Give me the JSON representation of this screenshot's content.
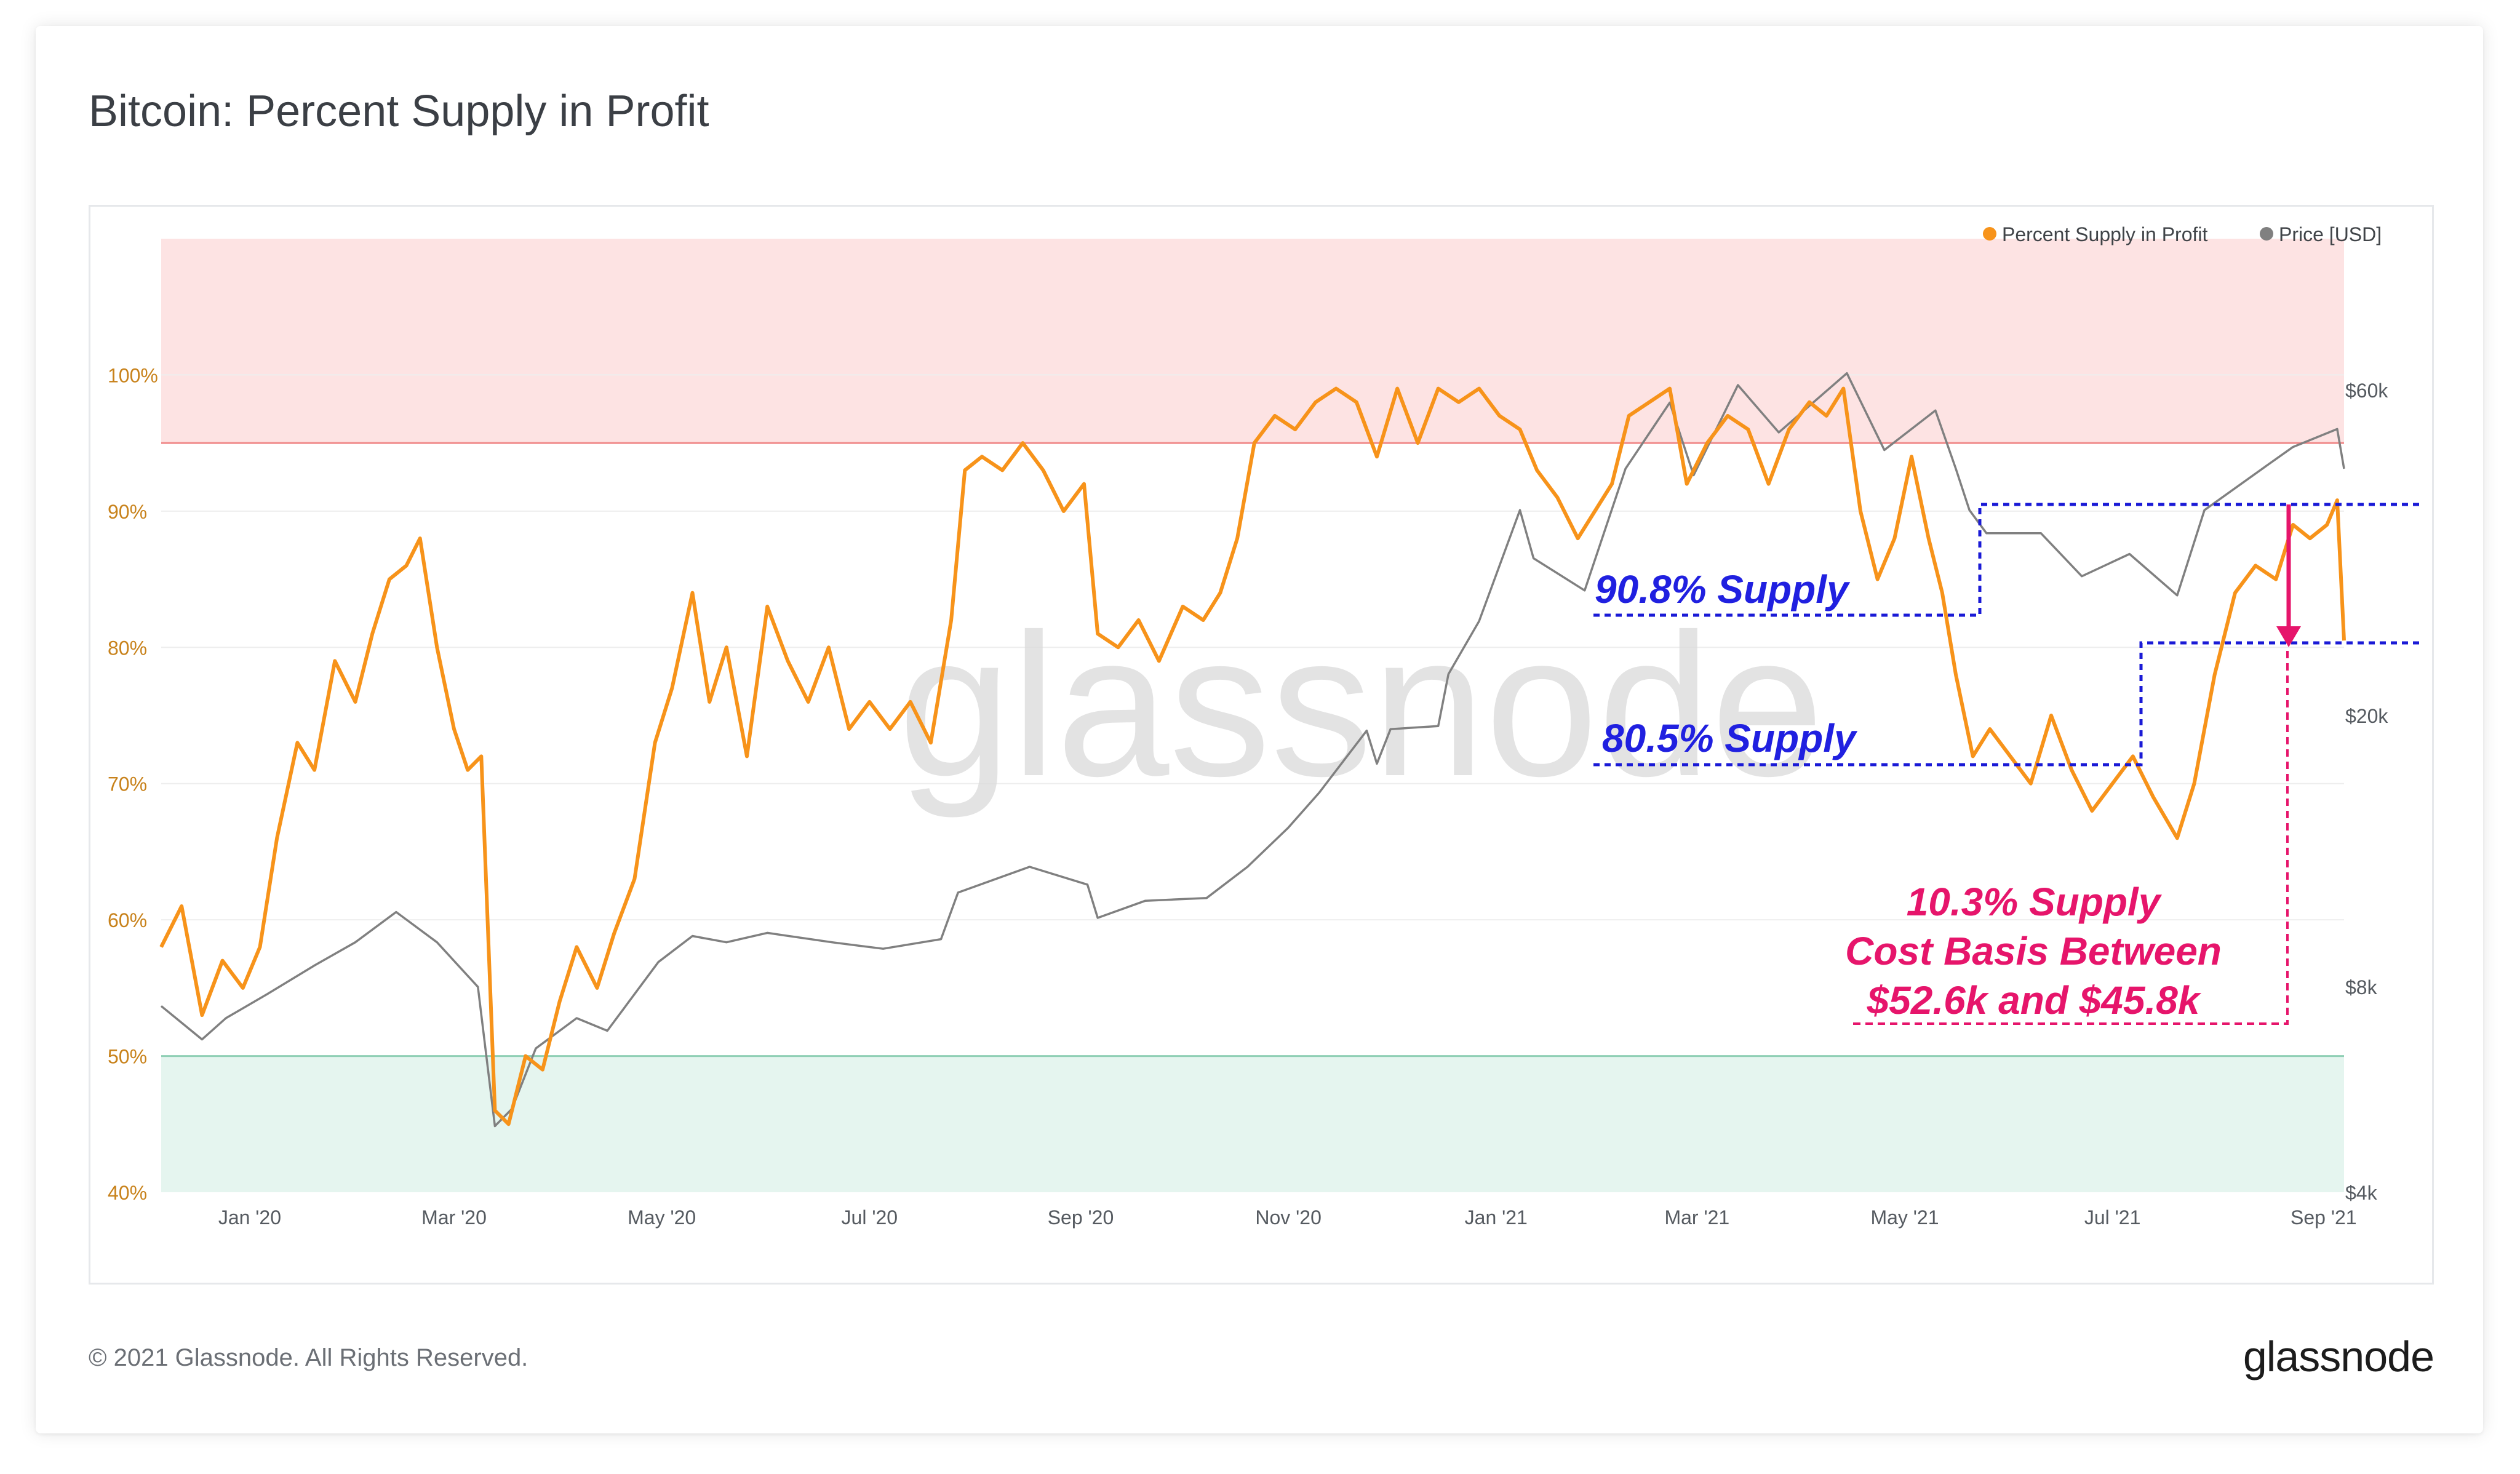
{
  "title": "Bitcoin: Percent Supply in Profit",
  "footer": {
    "copyright": "© 2021 Glassnode. All Rights Reserved.",
    "logo": "glassnode"
  },
  "watermark": "glassnode",
  "legend": {
    "items": [
      {
        "label": "Percent Supply in Profit",
        "color": "#f7931a"
      },
      {
        "label": "Price [USD]",
        "color": "#808080"
      }
    ]
  },
  "annotations": {
    "supply_90": "90.8% Supply",
    "supply_80": "80.5% Supply",
    "cost_basis_line1": "10.3% Supply",
    "cost_basis_line2": "Cost Basis Between",
    "cost_basis_line3": "$52.6k and $45.8k"
  },
  "chart_data": {
    "type": "line",
    "y_left": {
      "ticks": [
        "40%",
        "50%",
        "60%",
        "70%",
        "80%",
        "90%",
        "100%"
      ],
      "range": [
        40,
        110
      ]
    },
    "y_right": {
      "ticks": [
        "$4k",
        "$8k",
        "$20k",
        "$60k"
      ],
      "scale": "log",
      "range": [
        4000,
        100000
      ]
    },
    "x_ticks": [
      "Jan '20",
      "Mar '20",
      "May '20",
      "Jul '20",
      "Sep '20",
      "Nov '20",
      "Jan '21",
      "Mar '21",
      "May '21",
      "Jul '21",
      "Sep '21"
    ],
    "x_range": [
      "2019-12-06",
      "2021-09-07"
    ],
    "bands": [
      {
        "name": "upper",
        "from": 95,
        "to": 110,
        "color": "#fde3e3",
        "line": "#f08a8a"
      },
      {
        "name": "lower",
        "from": 40,
        "to": 50,
        "color": "#e5f5ef",
        "line": "#8fcfb5"
      }
    ],
    "series": [
      {
        "name": "Percent Supply in Profit",
        "axis": "left",
        "color": "#f7931a",
        "points": [
          [
            "2019-12-06",
            58
          ],
          [
            "2019-12-12",
            61
          ],
          [
            "2019-12-18",
            53
          ],
          [
            "2019-12-24",
            57
          ],
          [
            "2019-12-30",
            55
          ],
          [
            "2020-01-04",
            58
          ],
          [
            "2020-01-09",
            66
          ],
          [
            "2020-01-15",
            73
          ],
          [
            "2020-01-20",
            71
          ],
          [
            "2020-01-26",
            79
          ],
          [
            "2020-02-01",
            76
          ],
          [
            "2020-02-06",
            81
          ],
          [
            "2020-02-11",
            85
          ],
          [
            "2020-02-16",
            86
          ],
          [
            "2020-02-20",
            88
          ],
          [
            "2020-02-25",
            80
          ],
          [
            "2020-03-01",
            74
          ],
          [
            "2020-03-05",
            71
          ],
          [
            "2020-03-09",
            72
          ],
          [
            "2020-03-13",
            46
          ],
          [
            "2020-03-17",
            45
          ],
          [
            "2020-03-22",
            50
          ],
          [
            "2020-03-27",
            49
          ],
          [
            "2020-04-01",
            54
          ],
          [
            "2020-04-06",
            58
          ],
          [
            "2020-04-12",
            55
          ],
          [
            "2020-04-17",
            59
          ],
          [
            "2020-04-23",
            63
          ],
          [
            "2020-04-29",
            73
          ],
          [
            "2020-05-04",
            77
          ],
          [
            "2020-05-10",
            84
          ],
          [
            "2020-05-15",
            76
          ],
          [
            "2020-05-20",
            80
          ],
          [
            "2020-05-26",
            72
          ],
          [
            "2020-06-01",
            83
          ],
          [
            "2020-06-07",
            79
          ],
          [
            "2020-06-13",
            76
          ],
          [
            "2020-06-19",
            80
          ],
          [
            "2020-06-25",
            74
          ],
          [
            "2020-07-01",
            76
          ],
          [
            "2020-07-07",
            74
          ],
          [
            "2020-07-13",
            76
          ],
          [
            "2020-07-19",
            73
          ],
          [
            "2020-07-25",
            82
          ],
          [
            "2020-07-29",
            93
          ],
          [
            "2020-08-03",
            94
          ],
          [
            "2020-08-09",
            93
          ],
          [
            "2020-08-15",
            95
          ],
          [
            "2020-08-21",
            93
          ],
          [
            "2020-08-27",
            90
          ],
          [
            "2020-09-02",
            92
          ],
          [
            "2020-09-06",
            81
          ],
          [
            "2020-09-12",
            80
          ],
          [
            "2020-09-18",
            82
          ],
          [
            "2020-09-24",
            79
          ],
          [
            "2020-10-01",
            83
          ],
          [
            "2020-10-07",
            82
          ],
          [
            "2020-10-12",
            84
          ],
          [
            "2020-10-17",
            88
          ],
          [
            "2020-10-22",
            95
          ],
          [
            "2020-10-28",
            97
          ],
          [
            "2020-11-03",
            96
          ],
          [
            "2020-11-09",
            98
          ],
          [
            "2020-11-15",
            99
          ],
          [
            "2020-11-21",
            98
          ],
          [
            "2020-11-27",
            94
          ],
          [
            "2020-12-03",
            99
          ],
          [
            "2020-12-09",
            95
          ],
          [
            "2020-12-15",
            99
          ],
          [
            "2020-12-21",
            98
          ],
          [
            "2020-12-27",
            99
          ],
          [
            "2021-01-02",
            97
          ],
          [
            "2021-01-08",
            96
          ],
          [
            "2021-01-13",
            93
          ],
          [
            "2021-01-19",
            91
          ],
          [
            "2021-01-25",
            88
          ],
          [
            "2021-01-30",
            90
          ],
          [
            "2021-02-04",
            92
          ],
          [
            "2021-02-09",
            97
          ],
          [
            "2021-02-15",
            98
          ],
          [
            "2021-02-21",
            99
          ],
          [
            "2021-02-26",
            92
          ],
          [
            "2021-03-04",
            95
          ],
          [
            "2021-03-10",
            97
          ],
          [
            "2021-03-16",
            96
          ],
          [
            "2021-03-22",
            92
          ],
          [
            "2021-03-28",
            96
          ],
          [
            "2021-04-03",
            98
          ],
          [
            "2021-04-08",
            97
          ],
          [
            "2021-04-13",
            99
          ],
          [
            "2021-04-18",
            90
          ],
          [
            "2021-04-23",
            85
          ],
          [
            "2021-04-28",
            88
          ],
          [
            "2021-05-03",
            94
          ],
          [
            "2021-05-08",
            88
          ],
          [
            "2021-05-12",
            84
          ],
          [
            "2021-05-16",
            78
          ],
          [
            "2021-05-21",
            72
          ],
          [
            "2021-05-26",
            74
          ],
          [
            "2021-06-01",
            72
          ],
          [
            "2021-06-07",
            70
          ],
          [
            "2021-06-13",
            75
          ],
          [
            "2021-06-19",
            71
          ],
          [
            "2021-06-25",
            68
          ],
          [
            "2021-07-01",
            70
          ],
          [
            "2021-07-07",
            72
          ],
          [
            "2021-07-13",
            69
          ],
          [
            "2021-07-20",
            66
          ],
          [
            "2021-07-25",
            70
          ],
          [
            "2021-07-31",
            78
          ],
          [
            "2021-08-06",
            84
          ],
          [
            "2021-08-12",
            86
          ],
          [
            "2021-08-18",
            85
          ],
          [
            "2021-08-23",
            89
          ],
          [
            "2021-08-28",
            88
          ],
          [
            "2021-09-02",
            89
          ],
          [
            "2021-09-05",
            90.8
          ],
          [
            "2021-09-07",
            80.5
          ]
        ]
      },
      {
        "name": "Price [USD]",
        "axis": "right",
        "color": "#808080",
        "points": [
          [
            "2019-12-06",
            7500
          ],
          [
            "2019-12-18",
            6700
          ],
          [
            "2019-12-25",
            7200
          ],
          [
            "2020-01-06",
            7800
          ],
          [
            "2020-01-20",
            8600
          ],
          [
            "2020-02-01",
            9300
          ],
          [
            "2020-02-13",
            10300
          ],
          [
            "2020-02-25",
            9300
          ],
          [
            "2020-03-08",
            8000
          ],
          [
            "2020-03-13",
            5000
          ],
          [
            "2020-03-18",
            5300
          ],
          [
            "2020-03-25",
            6500
          ],
          [
            "2020-04-06",
            7200
          ],
          [
            "2020-04-15",
            6900
          ],
          [
            "2020-04-30",
            8700
          ],
          [
            "2020-05-10",
            9500
          ],
          [
            "2020-05-20",
            9300
          ],
          [
            "2020-06-01",
            9600
          ],
          [
            "2020-06-20",
            9300
          ],
          [
            "2020-07-05",
            9100
          ],
          [
            "2020-07-22",
            9400
          ],
          [
            "2020-07-27",
            11000
          ],
          [
            "2020-08-17",
            12000
          ],
          [
            "2020-09-03",
            11300
          ],
          [
            "2020-09-06",
            10100
          ],
          [
            "2020-09-20",
            10700
          ],
          [
            "2020-10-08",
            10800
          ],
          [
            "2020-10-20",
            12000
          ],
          [
            "2020-11-01",
            13700
          ],
          [
            "2020-11-10",
            15400
          ],
          [
            "2020-11-24",
            19000
          ],
          [
            "2020-11-27",
            17000
          ],
          [
            "2020-12-01",
            19100
          ],
          [
            "2020-12-15",
            19300
          ],
          [
            "2020-12-18",
            23000
          ],
          [
            "2020-12-27",
            27500
          ],
          [
            "2021-01-08",
            40000
          ],
          [
            "2021-01-12",
            34000
          ],
          [
            "2021-01-27",
            30500
          ],
          [
            "2021-02-08",
            46000
          ],
          [
            "2021-02-21",
            57500
          ],
          [
            "2021-02-28",
            45000
          ],
          [
            "2021-03-13",
            61000
          ],
          [
            "2021-03-25",
            52000
          ],
          [
            "2021-04-14",
            63500
          ],
          [
            "2021-04-25",
            49000
          ],
          [
            "2021-05-10",
            56000
          ],
          [
            "2021-05-16",
            46000
          ],
          [
            "2021-05-20",
            40000
          ],
          [
            "2021-05-25",
            37000
          ],
          [
            "2021-06-10",
            37000
          ],
          [
            "2021-06-22",
            32000
          ],
          [
            "2021-07-06",
            34500
          ],
          [
            "2021-07-20",
            30000
          ],
          [
            "2021-07-28",
            40000
          ],
          [
            "2021-08-14",
            46000
          ],
          [
            "2021-08-23",
            49500
          ],
          [
            "2021-09-05",
            52600
          ],
          [
            "2021-09-07",
            46000
          ]
        ]
      }
    ],
    "reference_lines": [
      {
        "label": "90.8% Supply",
        "value": 90.8,
        "from": "2021-02-01",
        "to": "2021-05-27"
      },
      {
        "label": "80.5% Supply",
        "value": 80.5,
        "from": "2021-07-27",
        "to": "2021-09-07"
      }
    ]
  }
}
